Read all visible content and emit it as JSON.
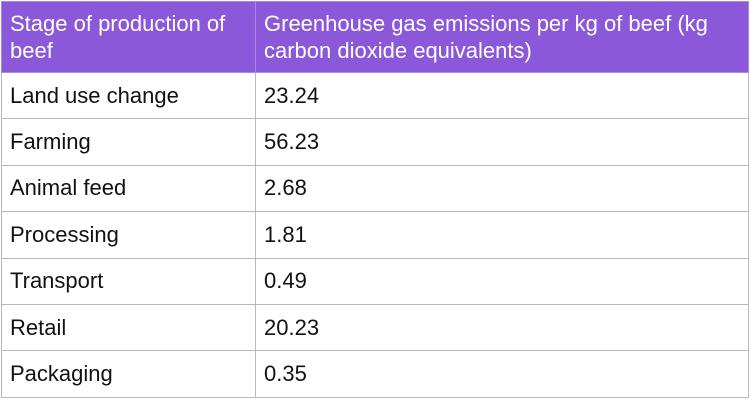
{
  "table": {
    "header": [
      "Stage of production of beef",
      "Greenhouse gas emissions per kg of beef (kg carbon dioxide equivalents)"
    ],
    "rows": [
      [
        "Land use change",
        "23.24"
      ],
      [
        "Farming",
        "56.23"
      ],
      [
        "Animal feed",
        "2.68"
      ],
      [
        "Processing",
        "1.81"
      ],
      [
        "Transport",
        "0.49"
      ],
      [
        "Retail",
        "20.23"
      ],
      [
        "Packaging",
        "0.35"
      ]
    ]
  }
}
